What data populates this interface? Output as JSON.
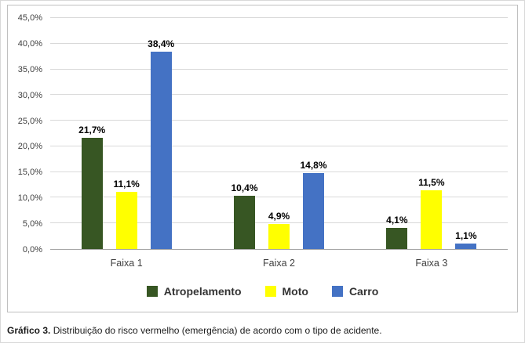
{
  "chart_data": {
    "type": "bar",
    "categories": [
      "Faixa 1",
      "Faixa 2",
      "Faixa 3"
    ],
    "series": [
      {
        "name": "Atropelamento",
        "color": "#375623",
        "values": [
          21.7,
          10.4,
          4.1
        ],
        "labels": [
          "21,7%",
          "10,4%",
          "4,1%"
        ]
      },
      {
        "name": "Moto",
        "color": "#FFFF00",
        "values": [
          11.1,
          4.9,
          11.5
        ],
        "labels": [
          "11,1%",
          "4,9%",
          "11,5%"
        ]
      },
      {
        "name": "Carro",
        "color": "#4472C4",
        "values": [
          38.4,
          14.8,
          1.1
        ],
        "labels": [
          "38,4%",
          "14,8%",
          "1,1%"
        ]
      }
    ],
    "ylim": [
      0,
      45
    ],
    "ytick_step": 5,
    "ytick_labels": [
      "0,0%",
      "5,0%",
      "10,0%",
      "15,0%",
      "20,0%",
      "25,0%",
      "30,0%",
      "35,0%",
      "40,0%",
      "45,0%"
    ],
    "grid": true,
    "legend_position": "bottom",
    "title": "",
    "xlabel": "",
    "ylabel": ""
  },
  "caption": {
    "prefix": "Gráfico 3.",
    "text": " Distribuição do risco vermelho (emergência) de acordo com o tipo de acidente."
  }
}
